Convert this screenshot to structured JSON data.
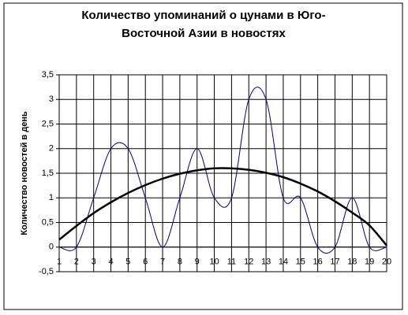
{
  "chart_data": {
    "type": "line",
    "title": [
      "Количество упоминаний о цунами в Юго-",
      "Восточной Азии в новостях"
    ],
    "y_label": "Количество новостей в день",
    "categories": [
      "1",
      "2",
      "3",
      "4",
      "5",
      "6",
      "7",
      "8",
      "9",
      "10",
      "11",
      "12",
      "13",
      "14",
      "15",
      "16",
      "17",
      "18",
      "19",
      "20"
    ],
    "series": [
      {
        "color": "#00008b",
        "width": 1,
        "smooth": true,
        "values": [
          0,
          0,
          1,
          2,
          2,
          1,
          0,
          1,
          2,
          1,
          1,
          3,
          3,
          1,
          1,
          0,
          0,
          1,
          0,
          0
        ]
      },
      {
        "color": "#000000",
        "width": 2.5,
        "smooth": true,
        "values": [
          0.15,
          0.43,
          0.69,
          0.91,
          1.1,
          1.26,
          1.39,
          1.49,
          1.56,
          1.6,
          1.6,
          1.57,
          1.51,
          1.42,
          1.29,
          1.13,
          0.93,
          0.7,
          0.44,
          0.03
        ]
      }
    ],
    "ylim": [
      -0.5,
      3.5
    ],
    "yticks": [
      {
        "value": -0.5,
        "label": "-0,5"
      },
      0,
      {
        "value": 0.5,
        "label": "0,5"
      },
      1,
      {
        "value": 1.5,
        "label": "1,5"
      },
      2,
      {
        "value": 2.5,
        "label": "2,5"
      },
      3,
      {
        "value": 3.5,
        "label": "3,5"
      }
    ],
    "grid": true
  }
}
